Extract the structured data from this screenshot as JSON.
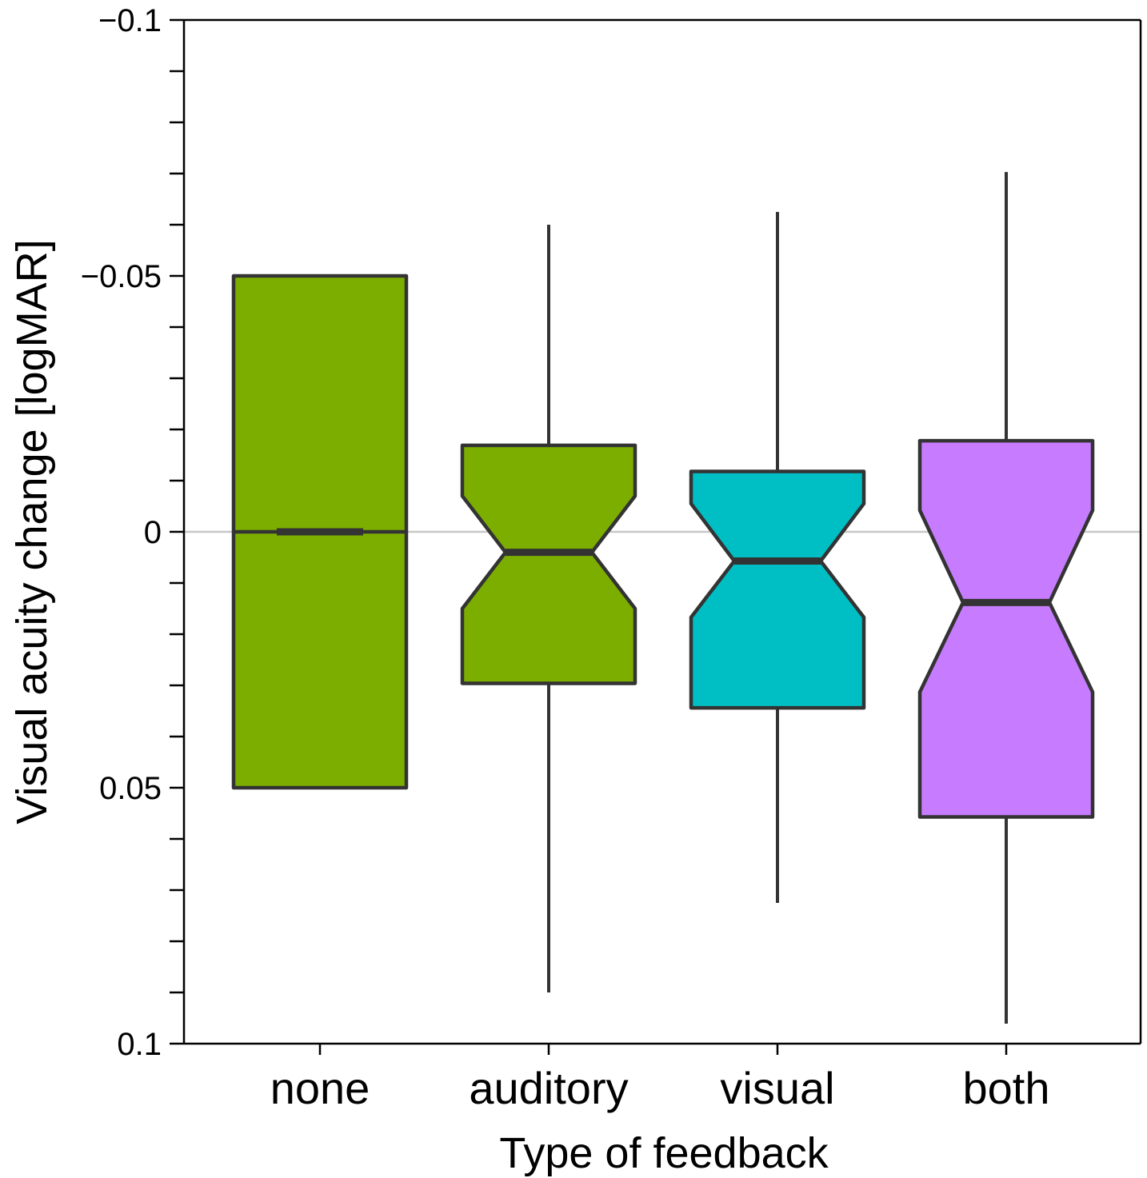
{
  "chart_data": {
    "type": "box",
    "notched": true,
    "xlabel": "Type of feedback",
    "ylabel": "Visual acuity change [logMAR]",
    "y_inverted": true,
    "ylim": [
      -0.1,
      0.1
    ],
    "yticks": [
      {
        "value": -0.1,
        "label": "−0.1"
      },
      {
        "value": -0.05,
        "label": "−0.05"
      },
      {
        "value": 0,
        "label": "0"
      },
      {
        "value": 0.05,
        "label": "0.05"
      },
      {
        "value": 0.1,
        "label": "0.1"
      }
    ],
    "y_minor_step": 0.01,
    "reference_line": 0,
    "grid": false,
    "categories": [
      "none",
      "auditory",
      "visual",
      "both"
    ],
    "boxes": [
      {
        "category": "none",
        "color": "#7cae00",
        "whisker_low": -0.05,
        "q1": -0.05,
        "median": 0.0,
        "q3": 0.05,
        "whisker_high": 0.05,
        "notch_low": 0.0,
        "notch_high": 0.0
      },
      {
        "category": "auditory",
        "color": "#7cae00",
        "whisker_low": -0.06,
        "q1": -0.0169,
        "median": 0.004,
        "q3": 0.0296,
        "whisker_high": 0.09,
        "notch_low": -0.007,
        "notch_high": 0.015
      },
      {
        "category": "visual",
        "color": "#00bfc4",
        "whisker_low": -0.0625,
        "q1": -0.0118,
        "median": 0.0057,
        "q3": 0.0344,
        "whisker_high": 0.0725,
        "notch_low": -0.0055,
        "notch_high": 0.0167
      },
      {
        "category": "both",
        "color": "#c77cff",
        "whisker_low": -0.0703,
        "q1": -0.0178,
        "median": 0.0138,
        "q3": 0.0557,
        "whisker_high": 0.0961,
        "notch_low": -0.0042,
        "notch_high": 0.0313
      }
    ]
  }
}
